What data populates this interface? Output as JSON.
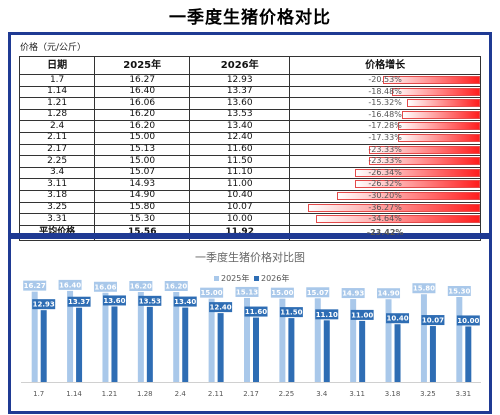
{
  "page_title": "一季度生猪价格对比",
  "table": {
    "unit_label": "价格（元/公斤）",
    "headers": [
      "日期",
      "2025年",
      "2026年",
      "价格增长"
    ],
    "rows": [
      {
        "date": "1.7",
        "y2025": "16.27",
        "y2026": "12.93",
        "growth": "-20.53%",
        "growth_value": -20.53
      },
      {
        "date": "1.14",
        "y2025": "16.40",
        "y2026": "13.37",
        "growth": "-18.48%",
        "growth_value": -18.48
      },
      {
        "date": "1.21",
        "y2025": "16.06",
        "y2026": "13.60",
        "growth": "-15.32%",
        "growth_value": -15.32
      },
      {
        "date": "1.28",
        "y2025": "16.20",
        "y2026": "13.53",
        "growth": "-16.48%",
        "growth_value": -16.48
      },
      {
        "date": "2.4",
        "y2025": "16.20",
        "y2026": "13.40",
        "growth": "-17.28%",
        "growth_value": -17.28
      },
      {
        "date": "2.11",
        "y2025": "15.00",
        "y2026": "12.40",
        "growth": "-17.33%",
        "growth_value": -17.33
      },
      {
        "date": "2.17",
        "y2025": "15.13",
        "y2026": "11.60",
        "growth": "-23.33%",
        "growth_value": -23.33
      },
      {
        "date": "2.25",
        "y2025": "15.00",
        "y2026": "11.50",
        "growth": "-23.33%",
        "growth_value": -23.33
      },
      {
        "date": "3.4",
        "y2025": "15.07",
        "y2026": "11.10",
        "growth": "-26.34%",
        "growth_value": -26.34
      },
      {
        "date": "3.11",
        "y2025": "14.93",
        "y2026": "11.00",
        "growth": "-26.32%",
        "growth_value": -26.32
      },
      {
        "date": "3.18",
        "y2025": "14.90",
        "y2026": "10.40",
        "growth": "-30.20%",
        "growth_value": -30.2
      },
      {
        "date": "3.25",
        "y2025": "15.80",
        "y2026": "10.07",
        "growth": "-36.27%",
        "growth_value": -36.27
      },
      {
        "date": "3.31",
        "y2025": "15.30",
        "y2026": "10.00",
        "growth": "-34.64%",
        "growth_value": -34.64
      }
    ],
    "average": {
      "label": "平均价格",
      "y2025": "15.56",
      "y2026": "11.92",
      "growth": "-23.42%"
    }
  },
  "colors": {
    "series_2025": "#a9c8ea",
    "series_2026": "#2e6db4",
    "growth_bar": "#ff1e1e",
    "frame": "#1f3a93"
  },
  "chart_data": {
    "type": "bar",
    "title": "一季度生猪价格对比图",
    "categories": [
      "1.7",
      "1.14",
      "1.21",
      "1.28",
      "2.4",
      "2.11",
      "2.17",
      "2.25",
      "3.4",
      "3.11",
      "3.18",
      "3.25",
      "3.31"
    ],
    "series": [
      {
        "name": "2025年",
        "values": [
          16.27,
          16.4,
          16.06,
          16.2,
          16.2,
          15.0,
          15.13,
          15.0,
          15.07,
          14.93,
          14.9,
          15.8,
          15.3
        ]
      },
      {
        "name": "2026年",
        "values": [
          12.93,
          13.37,
          13.6,
          13.53,
          13.4,
          12.4,
          11.6,
          11.5,
          11.1,
          11.0,
          10.4,
          10.07,
          10.0
        ]
      }
    ],
    "ylim": [
      0,
      18
    ],
    "legend_position": "top",
    "grid": false,
    "data_labels": true
  }
}
